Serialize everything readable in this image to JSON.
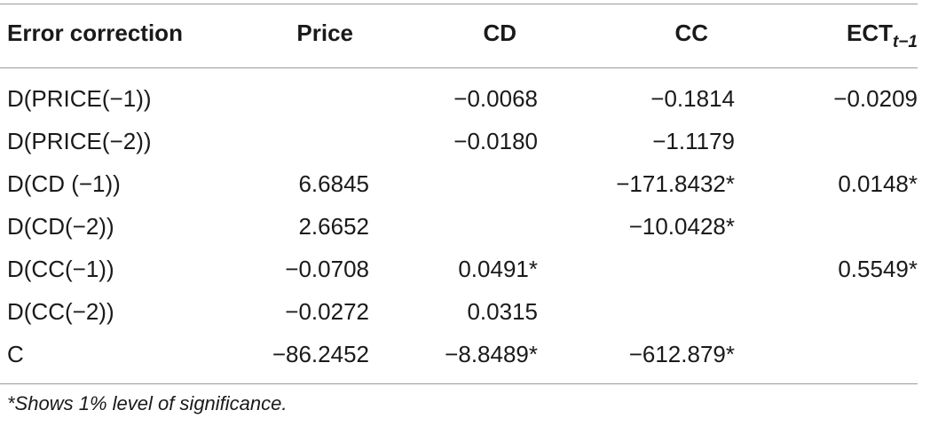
{
  "table": {
    "headers": {
      "label": "Error correction",
      "price": "Price",
      "cd": "CD",
      "cc": "CC",
      "ect_main": "ECT",
      "ect_sub": "t−1"
    },
    "rows": [
      {
        "label": "D(PRICE(−1))",
        "price": "",
        "cd": "−0.0068",
        "cc": "−0.1814",
        "ect": "−0.0209"
      },
      {
        "label": "D(PRICE(−2))",
        "price": "",
        "cd": "−0.0180",
        "cc": "−1.1179",
        "ect": ""
      },
      {
        "label": "D(CD (−1))",
        "price": "6.6845",
        "cd": "",
        "cc": "−171.8432*",
        "ect": "0.0148*"
      },
      {
        "label": "D(CD(−2))",
        "price": "2.6652",
        "cd": "",
        "cc": "−10.0428*",
        "ect": ""
      },
      {
        "label": "D(CC(−1))",
        "price": "−0.0708",
        "cd": "0.0491*",
        "cc": "",
        "ect": "0.5549*"
      },
      {
        "label": "D(CC(−2))",
        "price": "−0.0272",
        "cd": "0.0315",
        "cc": "",
        "ect": ""
      },
      {
        "label": "C",
        "price": "−86.2452",
        "cd": "−8.8489*",
        "cc": "−612.879*",
        "ect": ""
      }
    ],
    "footnote": "*Shows 1% level of significance."
  }
}
